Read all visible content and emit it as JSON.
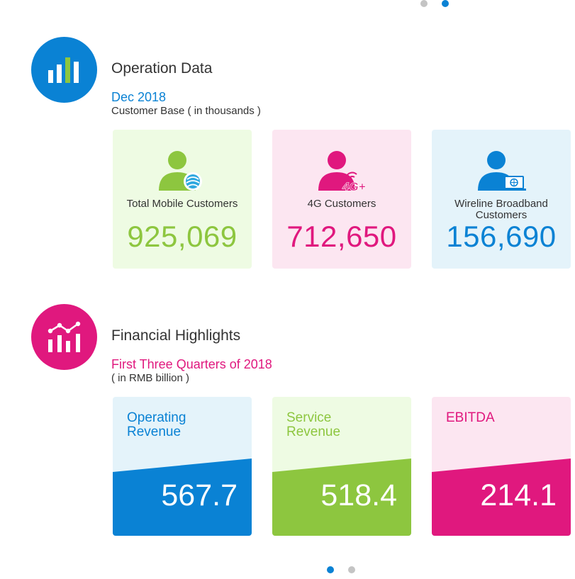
{
  "operation": {
    "title": "Operation Data",
    "period": "Dec 2018",
    "unit": "Customer Base ( in thousands )",
    "cards": [
      {
        "label": "Total Mobile Customers",
        "value": "925,069",
        "icon": "mobile-customer-icon",
        "badge": ""
      },
      {
        "label": "4G Customers",
        "value": "712,650",
        "icon": "4g-customer-icon",
        "badge": "4G+"
      },
      {
        "label": "Wireline Broadband Customers",
        "value": "156,690",
        "icon": "broadband-customer-icon",
        "badge": ""
      }
    ]
  },
  "financial": {
    "title": "Financial Highlights",
    "period": "First Three Quarters of 2018",
    "unit": "( in RMB billion )",
    "cards": [
      {
        "label": "Operating Revenue",
        "value": "567.7"
      },
      {
        "label": "Service Revenue",
        "value": "518.4"
      },
      {
        "label": "EBITDA",
        "value": "214.1"
      }
    ]
  },
  "colors": {
    "blue": "#0a82d4",
    "green": "#8dc63f",
    "pink": "#e0187e",
    "blue_light": "#e4f3fa",
    "green_light": "#eefbe3",
    "pink_light": "#fce6f1"
  },
  "carousel": {
    "top_active_index": 1,
    "bottom_active_index": 0,
    "count": 2
  }
}
